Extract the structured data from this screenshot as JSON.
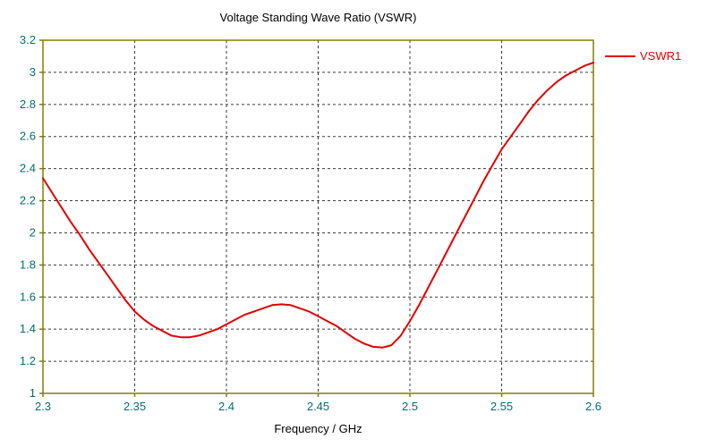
{
  "title": "Voltage Standing Wave Ratio (VSWR)",
  "colors": {
    "curve": "#e00000",
    "frame": "#808000",
    "grid": "#3a3a3a",
    "tick_text": "#006f6f",
    "title_text": "#000000",
    "background": "#ffffff"
  },
  "chart_data": {
    "type": "line",
    "title": "Voltage Standing Wave Ratio (VSWR)",
    "xlabel": "Frequency / GHz",
    "ylabel": "",
    "xlim": [
      2.3,
      2.6
    ],
    "ylim": [
      1,
      3.2
    ],
    "xticks": [
      2.3,
      2.35,
      2.4,
      2.45,
      2.5,
      2.55,
      2.6
    ],
    "xtick_labels": [
      "2.3",
      "2.35",
      "2.4",
      "2.45",
      "2.5",
      "2.55",
      "2.6"
    ],
    "yticks": [
      1,
      1.2,
      1.4,
      1.6,
      1.8,
      2,
      2.2,
      2.4,
      2.6,
      2.8,
      3,
      3.2
    ],
    "ytick_labels": [
      "1",
      "1.2",
      "1.4",
      "1.6",
      "1.8",
      "2",
      "2.2",
      "2.4",
      "2.6",
      "2.8",
      "3",
      "3.2"
    ],
    "grid": "dashed",
    "legend_position": "top-right-outside",
    "series": [
      {
        "name": "VSWR1",
        "color": "#e00000",
        "x": [
          2.3,
          2.305,
          2.31,
          2.315,
          2.32,
          2.325,
          2.33,
          2.335,
          2.34,
          2.345,
          2.35,
          2.355,
          2.36,
          2.365,
          2.37,
          2.375,
          2.38,
          2.385,
          2.39,
          2.395,
          2.4,
          2.405,
          2.41,
          2.415,
          2.42,
          2.425,
          2.43,
          2.435,
          2.44,
          2.445,
          2.45,
          2.455,
          2.46,
          2.465,
          2.47,
          2.475,
          2.48,
          2.485,
          2.49,
          2.495,
          2.5,
          2.505,
          2.51,
          2.515,
          2.52,
          2.525,
          2.53,
          2.535,
          2.54,
          2.545,
          2.55,
          2.555,
          2.56,
          2.565,
          2.57,
          2.575,
          2.58,
          2.585,
          2.59,
          2.595,
          2.6
        ],
        "y": [
          2.34,
          2.25,
          2.16,
          2.07,
          1.99,
          1.9,
          1.82,
          1.74,
          1.66,
          1.58,
          1.51,
          1.46,
          1.42,
          1.39,
          1.36,
          1.35,
          1.35,
          1.36,
          1.38,
          1.4,
          1.43,
          1.46,
          1.49,
          1.51,
          1.53,
          1.55,
          1.555,
          1.55,
          1.53,
          1.51,
          1.48,
          1.45,
          1.42,
          1.38,
          1.34,
          1.31,
          1.29,
          1.285,
          1.3,
          1.36,
          1.45,
          1.55,
          1.66,
          1.77,
          1.88,
          1.99,
          2.1,
          2.21,
          2.32,
          2.42,
          2.52,
          2.6,
          2.68,
          2.76,
          2.83,
          2.89,
          2.94,
          2.98,
          3.01,
          3.04,
          3.06
        ]
      }
    ]
  }
}
